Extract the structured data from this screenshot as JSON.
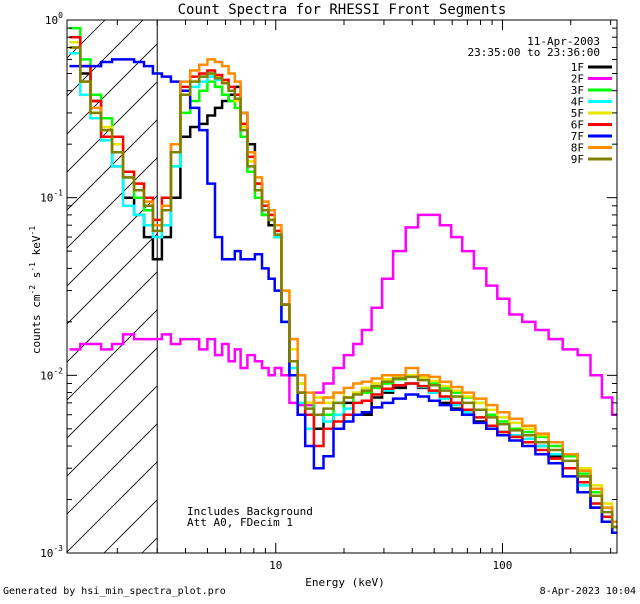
{
  "chart_data": {
    "type": "line",
    "title": "Count Spectra for RHESSI Front Segments",
    "xlabel": "Energy (keV)",
    "ylabel": "counts cm^-2 s^-1 keV^-1",
    "ylabel_parts": {
      "base": "counts cm",
      "e1": "-2",
      "mid1": " s",
      "e2": "-1",
      "mid2": " keV",
      "e3": "-1"
    },
    "xscale": "log",
    "yscale": "log",
    "xlim": [
      1.2,
      320
    ],
    "ylim": [
      0.001,
      1
    ],
    "x_ticks": [
      {
        "v": 10,
        "label": "10"
      },
      {
        "v": 100,
        "label": "100"
      }
    ],
    "y_ticks": [
      {
        "v": 0.001,
        "base": "10",
        "exp": "-3"
      },
      {
        "v": 0.01,
        "base": "10",
        "exp": "-2"
      },
      {
        "v": 0.1,
        "base": "10",
        "exp": "-1"
      },
      {
        "v": 1,
        "base": "10",
        "exp": "0"
      }
    ],
    "shaded_region": {
      "x_max": 3
    },
    "date_line": "11-Apr-2003",
    "time_line": "23:35:00 to 23:36:00",
    "annotations": [
      "Includes Background",
      "Att A0, FDecim 1"
    ],
    "legend_position": "top-right",
    "x": [
      1.3,
      1.45,
      1.6,
      1.8,
      2.0,
      2.25,
      2.5,
      2.75,
      3.0,
      3.3,
      3.6,
      4.0,
      4.4,
      4.8,
      5.2,
      5.6,
      6.0,
      6.4,
      6.8,
      7.2,
      7.8,
      8.4,
      9.0,
      9.6,
      10.2,
      11.0,
      12.0,
      13.0,
      14.0,
      15.5,
      17.0,
      19.0,
      21.0,
      23.0,
      25.0,
      28.0,
      31.0,
      35.0,
      40.0,
      45.0,
      50.0,
      56.0,
      63.0,
      70.0,
      80.0,
      90.0,
      100.0,
      115.0,
      130.0,
      150.0,
      170.0,
      200.0,
      230.0,
      260.0,
      290.0,
      320.0
    ],
    "series": [
      {
        "name": "1F",
        "color": "#000000",
        "values": [
          0.75,
          0.5,
          0.35,
          0.22,
          0.15,
          0.1,
          0.08,
          0.06,
          0.045,
          0.06,
          0.1,
          0.22,
          0.25,
          0.26,
          0.29,
          0.32,
          0.35,
          0.38,
          0.42,
          0.3,
          0.2,
          0.12,
          0.08,
          0.07,
          0.06,
          0.025,
          0.01,
          0.006,
          0.007,
          0.005,
          0.006,
          0.005,
          0.007,
          0.006,
          0.006,
          0.0075,
          0.008,
          0.0085,
          0.009,
          0.0085,
          0.008,
          0.007,
          0.0065,
          0.006,
          0.0055,
          0.005,
          0.0048,
          0.0045,
          0.0042,
          0.004,
          0.0035,
          0.003,
          0.0022,
          0.0018,
          0.0015,
          0.0013
        ]
      },
      {
        "name": "2F",
        "color": "#ff00ff",
        "values": [
          0.014,
          0.015,
          0.015,
          0.014,
          0.015,
          0.017,
          0.016,
          0.016,
          0.016,
          0.017,
          0.015,
          0.016,
          0.016,
          0.014,
          0.016,
          0.013,
          0.015,
          0.012,
          0.014,
          0.011,
          0.013,
          0.012,
          0.011,
          0.01,
          0.011,
          0.01,
          0.007,
          0.0068,
          0.0068,
          0.008,
          0.009,
          0.011,
          0.013,
          0.015,
          0.018,
          0.024,
          0.035,
          0.05,
          0.068,
          0.08,
          0.08,
          0.07,
          0.06,
          0.05,
          0.04,
          0.032,
          0.027,
          0.022,
          0.02,
          0.018,
          0.016,
          0.014,
          0.013,
          0.01,
          0.0075,
          0.006
        ]
      },
      {
        "name": "3F",
        "color": "#00ff00",
        "values": [
          0.9,
          0.6,
          0.38,
          0.28,
          0.2,
          0.13,
          0.1,
          0.085,
          0.07,
          0.09,
          0.15,
          0.3,
          0.35,
          0.4,
          0.45,
          0.42,
          0.38,
          0.35,
          0.32,
          0.22,
          0.14,
          0.1,
          0.08,
          0.075,
          0.06,
          0.02,
          0.012,
          0.009,
          0.007,
          0.006,
          0.006,
          0.007,
          0.006,
          0.008,
          0.008,
          0.0085,
          0.009,
          0.0095,
          0.01,
          0.0095,
          0.009,
          0.0085,
          0.008,
          0.0075,
          0.007,
          0.006,
          0.0055,
          0.005,
          0.0048,
          0.0045,
          0.004,
          0.0035,
          0.0028,
          0.0022,
          0.0018,
          0.0015
        ]
      },
      {
        "name": "4F",
        "color": "#00ffff",
        "values": [
          0.65,
          0.38,
          0.28,
          0.21,
          0.15,
          0.09,
          0.08,
          0.07,
          0.06,
          0.07,
          0.15,
          0.4,
          0.42,
          0.45,
          0.48,
          0.46,
          0.44,
          0.4,
          0.36,
          0.24,
          0.15,
          0.11,
          0.085,
          0.075,
          0.06,
          0.02,
          0.011,
          0.007,
          0.005,
          0.006,
          0.0055,
          0.006,
          0.0065,
          0.007,
          0.0072,
          0.0078,
          0.0082,
          0.0088,
          0.009,
          0.0086,
          0.008,
          0.0074,
          0.0068,
          0.0062,
          0.0058,
          0.0052,
          0.0048,
          0.0046,
          0.0044,
          0.004,
          0.0036,
          0.003,
          0.0024,
          0.0019,
          0.0016,
          0.0014
        ]
      },
      {
        "name": "5F",
        "color": "#e6e600",
        "values": [
          0.75,
          0.45,
          0.3,
          0.25,
          0.2,
          0.14,
          0.12,
          0.09,
          0.07,
          0.085,
          0.18,
          0.4,
          0.45,
          0.48,
          0.5,
          0.48,
          0.45,
          0.4,
          0.35,
          0.25,
          0.16,
          0.12,
          0.09,
          0.08,
          0.065,
          0.03,
          0.014,
          0.009,
          0.007,
          0.0075,
          0.007,
          0.008,
          0.0075,
          0.008,
          0.0085,
          0.009,
          0.0095,
          0.0098,
          0.01,
          0.0097,
          0.0093,
          0.0087,
          0.0082,
          0.0076,
          0.007,
          0.0064,
          0.0058,
          0.0054,
          0.005,
          0.0046,
          0.0042,
          0.0036,
          0.003,
          0.0024,
          0.0019,
          0.0015
        ]
      },
      {
        "name": "6F",
        "color": "#ff0000",
        "values": [
          0.8,
          0.55,
          0.35,
          0.22,
          0.22,
          0.14,
          0.12,
          0.1,
          0.075,
          0.1,
          0.2,
          0.42,
          0.48,
          0.5,
          0.52,
          0.49,
          0.46,
          0.42,
          0.38,
          0.26,
          0.17,
          0.12,
          0.09,
          0.08,
          0.065,
          0.025,
          0.012,
          0.008,
          0.006,
          0.004,
          0.005,
          0.0055,
          0.006,
          0.007,
          0.0072,
          0.0078,
          0.0084,
          0.0088,
          0.009,
          0.0087,
          0.0082,
          0.0076,
          0.007,
          0.0064,
          0.0058,
          0.0052,
          0.0048,
          0.0045,
          0.0042,
          0.0038,
          0.0034,
          0.003,
          0.0025,
          0.0019,
          0.0016,
          0.0014
        ]
      },
      {
        "name": "7F",
        "color": "#0000ff",
        "values": [
          0.55,
          0.55,
          0.55,
          0.58,
          0.6,
          0.6,
          0.58,
          0.55,
          0.5,
          0.48,
          0.45,
          0.4,
          0.32,
          0.24,
          0.12,
          0.06,
          0.045,
          0.045,
          0.05,
          0.045,
          0.045,
          0.048,
          0.04,
          0.035,
          0.03,
          0.02,
          0.01,
          0.006,
          0.004,
          0.003,
          0.0035,
          0.005,
          0.0055,
          0.006,
          0.0062,
          0.0066,
          0.007,
          0.0074,
          0.0078,
          0.0076,
          0.0072,
          0.0068,
          0.0064,
          0.006,
          0.0054,
          0.005,
          0.0046,
          0.0043,
          0.004,
          0.0036,
          0.0032,
          0.0027,
          0.0022,
          0.0018,
          0.0015,
          0.0013
        ]
      },
      {
        "name": "8F",
        "color": "#ff8c00",
        "values": [
          0.7,
          0.45,
          0.32,
          0.24,
          0.18,
          0.13,
          0.11,
          0.095,
          0.07,
          0.09,
          0.2,
          0.45,
          0.52,
          0.56,
          0.6,
          0.58,
          0.55,
          0.5,
          0.45,
          0.3,
          0.18,
          0.13,
          0.095,
          0.085,
          0.07,
          0.03,
          0.016,
          0.01,
          0.008,
          0.007,
          0.0075,
          0.008,
          0.0085,
          0.009,
          0.0092,
          0.0096,
          0.01,
          0.01,
          0.011,
          0.01,
          0.0098,
          0.0092,
          0.0086,
          0.008,
          0.0074,
          0.0068,
          0.0062,
          0.0057,
          0.0052,
          0.0047,
          0.0042,
          0.0036,
          0.0029,
          0.0023,
          0.0018,
          0.0015
        ]
      },
      {
        "name": "9F",
        "color": "#808000",
        "values": [
          0.7,
          0.45,
          0.3,
          0.24,
          0.18,
          0.13,
          0.11,
          0.09,
          0.065,
          0.085,
          0.18,
          0.38,
          0.45,
          0.48,
          0.5,
          0.47,
          0.44,
          0.4,
          0.36,
          0.24,
          0.15,
          0.11,
          0.085,
          0.075,
          0.062,
          0.025,
          0.012,
          0.008,
          0.0065,
          0.006,
          0.0065,
          0.007,
          0.0075,
          0.0078,
          0.0082,
          0.0087,
          0.0092,
          0.0096,
          0.0098,
          0.0094,
          0.0088,
          0.0082,
          0.0076,
          0.007,
          0.0064,
          0.0058,
          0.0053,
          0.0049,
          0.0046,
          0.0042,
          0.0038,
          0.0033,
          0.0027,
          0.0021,
          0.0017,
          0.0014
        ]
      }
    ]
  },
  "footer": {
    "left": "Generated by hsi_min_spectra_plot.pro",
    "right": "8-Apr-2023 10:04"
  }
}
